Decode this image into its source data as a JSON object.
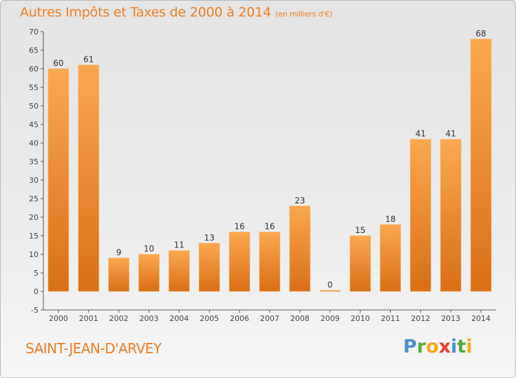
{
  "title": "Autres Impôts et Taxes de 2000 à 2014",
  "unit": "(en milliers d'€)",
  "commune": "SAINT-JEAN-D'ARVEY",
  "logo": {
    "text": "Proxiti",
    "letters": [
      {
        "ch": "P",
        "color": "#4a8fcf"
      },
      {
        "ch": "r",
        "color": "#5aab3c"
      },
      {
        "ch": "o",
        "color": "#f1a81d"
      },
      {
        "ch": "x",
        "color": "#e5412f"
      },
      {
        "ch": "i",
        "color": "#4a8fcf"
      },
      {
        "ch": "t",
        "color": "#5aab3c"
      },
      {
        "ch": "i",
        "color": "#f1a81d"
      }
    ]
  },
  "colors": {
    "accent": "#ef7f22",
    "bar_light": "#fba850",
    "bar_dark": "#d96f17",
    "axis": "#555555"
  },
  "chart_data": {
    "type": "bar",
    "categories": [
      "2000",
      "2001",
      "2002",
      "2003",
      "2004",
      "2005",
      "2006",
      "2007",
      "2008",
      "2009",
      "2010",
      "2011",
      "2012",
      "2013",
      "2014"
    ],
    "values": [
      60,
      61,
      9,
      10,
      11,
      13,
      16,
      16,
      23,
      0,
      15,
      18,
      41,
      41,
      68
    ],
    "ylim": [
      -5,
      70
    ],
    "yticks": [
      -5,
      0,
      5,
      10,
      15,
      20,
      25,
      30,
      35,
      40,
      45,
      50,
      55,
      60,
      65,
      70
    ],
    "grid": false,
    "title": "Autres Impôts et Taxes de 2000 à 2014",
    "ylabel": "",
    "xlabel": ""
  }
}
